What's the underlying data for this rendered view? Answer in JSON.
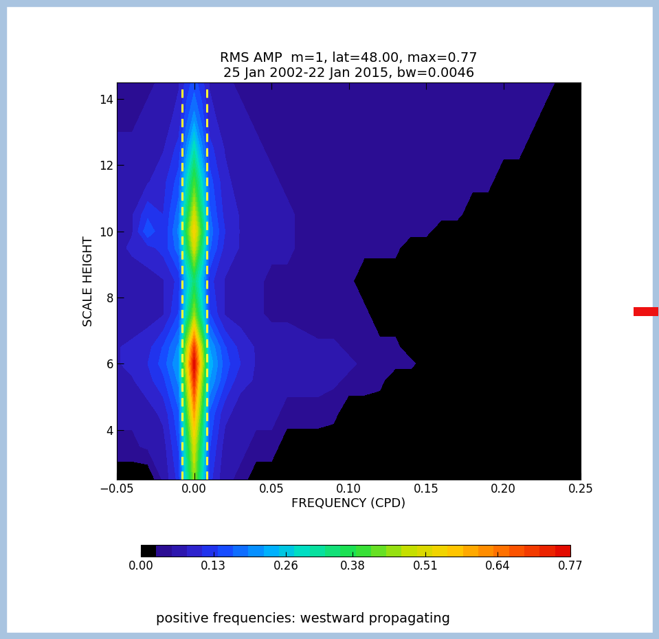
{
  "chart_data": {
    "type": "contour",
    "title": [
      "RMS AMP  m=1, lat=48.00, max=0.77",
      "25 Jan 2002-22 Jan 2015, bw=0.0046"
    ],
    "x_label": "FREQUENCY (CPD)",
    "y_label": "SCALE HEIGHT",
    "caption": "positive frequencies: westward propagating",
    "x": [
      -0.05,
      -0.04,
      -0.03,
      -0.02,
      -0.01,
      -0.005,
      0.0,
      0.005,
      0.01,
      0.02,
      0.03,
      0.04,
      0.05,
      0.06,
      0.07,
      0.08,
      0.09,
      0.1,
      0.11,
      0.12,
      0.13,
      0.14,
      0.15,
      0.16,
      0.17,
      0.18,
      0.19,
      0.2,
      0.21,
      0.22,
      0.23,
      0.24,
      0.25
    ],
    "y": [
      2.5,
      3.5,
      4.5,
      5.5,
      6.0,
      6.5,
      7.5,
      8.5,
      9.5,
      10.0,
      10.5,
      11.5,
      12.5,
      13.5,
      14.5
    ],
    "cells": [
      [
        0,
        0,
        0,
        0.06,
        0.12,
        0.3,
        0.45,
        0.3,
        0.12,
        0.06,
        0.05,
        0,
        0,
        0,
        0,
        0,
        0,
        0,
        0,
        0,
        0,
        0,
        0,
        0,
        0,
        0,
        0,
        0,
        0,
        0,
        0,
        0,
        0
      ],
      [
        0.05,
        0.05,
        0.06,
        0.07,
        0.14,
        0.33,
        0.5,
        0.33,
        0.14,
        0.07,
        0.06,
        0.05,
        0.05,
        0,
        0,
        0,
        0,
        0,
        0,
        0,
        0,
        0,
        0,
        0,
        0,
        0,
        0,
        0,
        0,
        0,
        0,
        0,
        0
      ],
      [
        0.06,
        0.06,
        0.07,
        0.09,
        0.16,
        0.38,
        0.6,
        0.38,
        0.16,
        0.09,
        0.07,
        0.06,
        0.06,
        0.05,
        0.05,
        0.05,
        0.04,
        0,
        0,
        0,
        0,
        0,
        0,
        0,
        0,
        0,
        0,
        0,
        0,
        0,
        0,
        0,
        0
      ],
      [
        0.07,
        0.08,
        0.1,
        0.13,
        0.2,
        0.45,
        0.72,
        0.45,
        0.22,
        0.14,
        0.09,
        0.08,
        0.07,
        0.06,
        0.06,
        0.06,
        0.06,
        0.05,
        0.05,
        0.04,
        0,
        0,
        0,
        0,
        0,
        0,
        0,
        0,
        0,
        0,
        0,
        0,
        0
      ],
      [
        0.08,
        0.09,
        0.11,
        0.15,
        0.22,
        0.5,
        0.77,
        0.5,
        0.24,
        0.15,
        0.11,
        0.08,
        0.07,
        0.07,
        0.07,
        0.07,
        0.06,
        0.06,
        0.05,
        0.05,
        0.04,
        0.04,
        0,
        0,
        0,
        0,
        0,
        0,
        0,
        0,
        0,
        0,
        0
      ],
      [
        0.08,
        0.09,
        0.1,
        0.14,
        0.2,
        0.46,
        0.7,
        0.46,
        0.22,
        0.14,
        0.1,
        0.08,
        0.07,
        0.07,
        0.06,
        0.06,
        0.06,
        0.05,
        0.05,
        0.04,
        0.04,
        0,
        0,
        0,
        0,
        0,
        0,
        0,
        0,
        0,
        0,
        0,
        0
      ],
      [
        0.06,
        0.06,
        0.07,
        0.08,
        0.14,
        0.3,
        0.45,
        0.3,
        0.14,
        0.08,
        0.07,
        0.06,
        0.05,
        0.05,
        0.05,
        0.04,
        0.04,
        0.04,
        0.04,
        0,
        0,
        0,
        0,
        0,
        0,
        0,
        0,
        0,
        0,
        0,
        0,
        0,
        0
      ],
      [
        0.06,
        0.06,
        0.07,
        0.08,
        0.12,
        0.25,
        0.35,
        0.25,
        0.12,
        0.08,
        0.07,
        0.06,
        0.05,
        0.05,
        0.05,
        0.04,
        0.04,
        0.04,
        0,
        0,
        0,
        0,
        0,
        0,
        0,
        0,
        0,
        0,
        0,
        0,
        0,
        0,
        0
      ],
      [
        0.07,
        0.09,
        0.1,
        0.12,
        0.18,
        0.34,
        0.5,
        0.34,
        0.17,
        0.1,
        0.08,
        0.07,
        0.06,
        0.06,
        0.05,
        0.05,
        0.05,
        0.05,
        0.04,
        0.04,
        0.04,
        0,
        0,
        0,
        0,
        0,
        0,
        0,
        0,
        0,
        0,
        0,
        0
      ],
      [
        0.07,
        0.08,
        0.16,
        0.11,
        0.2,
        0.38,
        0.55,
        0.38,
        0.18,
        0.11,
        0.08,
        0.07,
        0.06,
        0.06,
        0.05,
        0.05,
        0.05,
        0.05,
        0.05,
        0.04,
        0.04,
        0.04,
        0.04,
        0,
        0,
        0,
        0,
        0,
        0,
        0,
        0,
        0,
        0
      ],
      [
        0.07,
        0.08,
        0.13,
        0.11,
        0.18,
        0.34,
        0.5,
        0.34,
        0.17,
        0.1,
        0.08,
        0.07,
        0.06,
        0.06,
        0.05,
        0.05,
        0.05,
        0.05,
        0.05,
        0.04,
        0.04,
        0.04,
        0.04,
        0.04,
        0.04,
        0,
        0,
        0,
        0,
        0,
        0,
        0,
        0
      ],
      [
        0.06,
        0.07,
        0.08,
        0.1,
        0.15,
        0.28,
        0.4,
        0.28,
        0.15,
        0.09,
        0.07,
        0.06,
        0.06,
        0.05,
        0.05,
        0.05,
        0.05,
        0.05,
        0.05,
        0.04,
        0.04,
        0.04,
        0.04,
        0.04,
        0.04,
        0.04,
        0.04,
        0,
        0,
        0,
        0,
        0,
        0
      ],
      [
        0.06,
        0.06,
        0.07,
        0.08,
        0.12,
        0.2,
        0.3,
        0.2,
        0.12,
        0.08,
        0.07,
        0.06,
        0.05,
        0.05,
        0.05,
        0.05,
        0.05,
        0.05,
        0.04,
        0.04,
        0.04,
        0.04,
        0.04,
        0.04,
        0.04,
        0.04,
        0.04,
        0.04,
        0.04,
        0,
        0,
        0,
        0
      ],
      [
        0.05,
        0.05,
        0.06,
        0.07,
        0.09,
        0.15,
        0.2,
        0.15,
        0.09,
        0.07,
        0.06,
        0.05,
        0.05,
        0.05,
        0.05,
        0.05,
        0.05,
        0.05,
        0.04,
        0.04,
        0.04,
        0.04,
        0.04,
        0.04,
        0.04,
        0.04,
        0.04,
        0.04,
        0.04,
        0.04,
        0,
        0,
        0
      ],
      [
        0.05,
        0.05,
        0.05,
        0.06,
        0.08,
        0.12,
        0.15,
        0.12,
        0.08,
        0.06,
        0.05,
        0.05,
        0.05,
        0.05,
        0.05,
        0.05,
        0.05,
        0.04,
        0.04,
        0.04,
        0.04,
        0.04,
        0.04,
        0.04,
        0.04,
        0.04,
        0.04,
        0.04,
        0.04,
        0.04,
        0.04,
        0,
        0
      ]
    ],
    "xlim": [
      -0.05,
      0.25
    ],
    "xticks": [
      {
        "value": -0.05,
        "label": "−0.05"
      },
      {
        "value": 0.0,
        "label": "0.00"
      },
      {
        "value": 0.05,
        "label": "0.05"
      },
      {
        "value": 0.1,
        "label": "0.10"
      },
      {
        "value": 0.15,
        "label": "0.15"
      },
      {
        "value": 0.2,
        "label": "0.20"
      },
      {
        "value": 0.25,
        "label": "0.25"
      }
    ],
    "ylim": [
      2.5,
      14.5
    ],
    "yticks": [
      4,
      6,
      8,
      10,
      12,
      14
    ],
    "colorbar_range": [
      0.0,
      0.77
    ],
    "colorbar_ticks": [
      {
        "value": 0.0,
        "label": "0.00"
      },
      0.13,
      0.26,
      0.38,
      0.51,
      0.64,
      0.77
    ],
    "band_lines": [
      -0.008,
      0.008
    ],
    "band_color": "#ffff33"
  }
}
